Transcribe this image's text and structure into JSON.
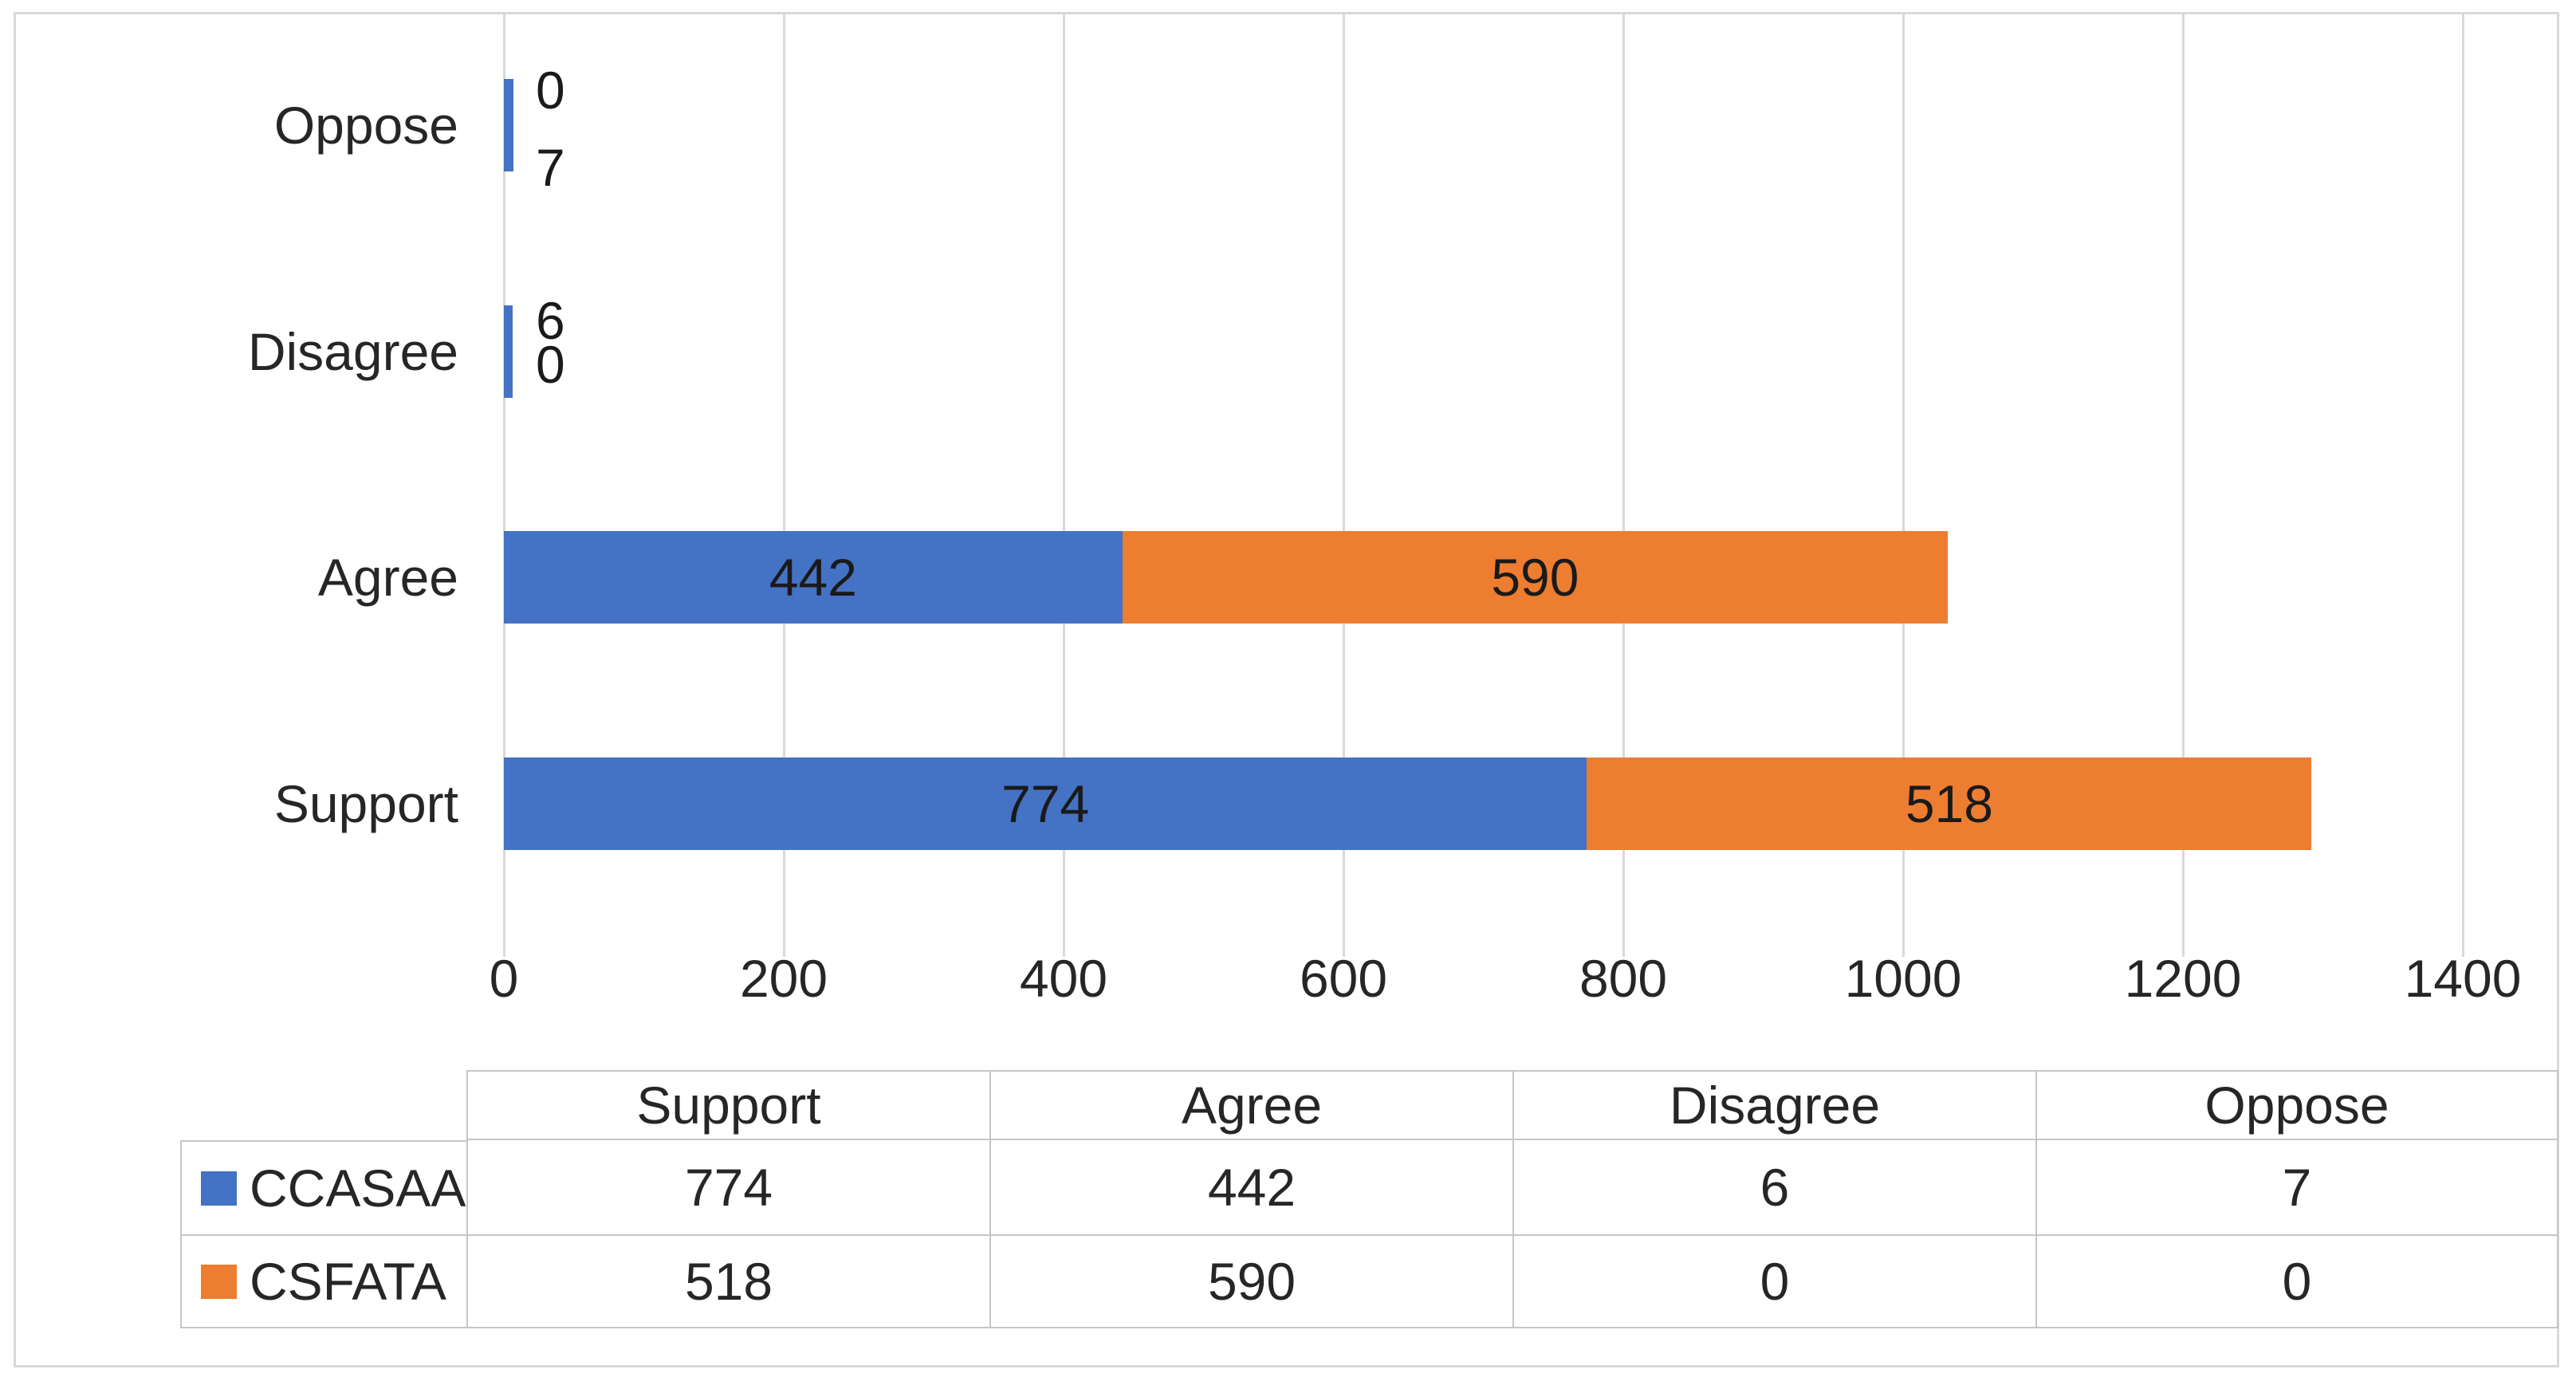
{
  "figure": {
    "background": "#FFFFFF",
    "border_color": "#D9D9D9"
  },
  "chart_data": {
    "type": "bar",
    "subtype": "stacked-horizontal",
    "title": "",
    "xlabel": "",
    "ylabel": "",
    "categories": [
      "Support",
      "Agree",
      "Disagree",
      "Oppose"
    ],
    "display_order_top_to_bottom": [
      "Oppose",
      "Disagree",
      "Agree",
      "Support"
    ],
    "series": [
      {
        "name": "CCASAA",
        "color": "#4472C4",
        "values": [
          774,
          442,
          6,
          7
        ]
      },
      {
        "name": "CSFATA",
        "color": "#ED7D31",
        "values": [
          518,
          590,
          0,
          0
        ]
      }
    ],
    "xlim": [
      0,
      1400
    ],
    "x_ticks": [
      "0",
      "200",
      "400",
      "600",
      "800",
      "1000",
      "1200",
      "1400"
    ],
    "grid": true,
    "gridline_color": "#D9D9D9",
    "label_color": "#262626",
    "legend_position": "data-table",
    "bar_value_labels": {
      "Support": [
        "774",
        "518"
      ],
      "Agree": [
        "442",
        "590"
      ]
    },
    "outside_label_stacks": {
      "Oppose": [
        "0",
        "7"
      ],
      "Disagree": [
        "6",
        "0"
      ]
    }
  },
  "data_table": {
    "corner_label": "",
    "column_headers": [
      "Support",
      "Agree",
      "Disagree",
      "Oppose"
    ],
    "rows": [
      {
        "series": "CCASAA",
        "swatch_color": "#4472C4",
        "values": [
          "774",
          "442",
          "6",
          "7"
        ]
      },
      {
        "series": "CSFATA",
        "swatch_color": "#ED7D31",
        "values": [
          "518",
          "590",
          "0",
          "0"
        ]
      }
    ],
    "border_color": "#C6C6C6"
  }
}
